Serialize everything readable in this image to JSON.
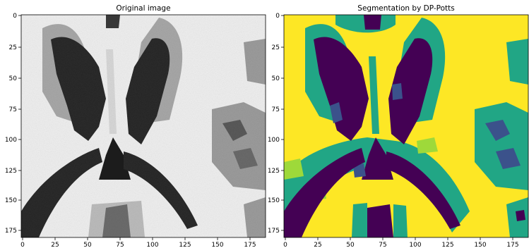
{
  "panels": [
    {
      "title": "Original image",
      "x_ticks": [
        "0",
        "25",
        "50",
        "75",
        "100",
        "125",
        "150",
        "175"
      ],
      "y_ticks": [
        "0",
        "25",
        "50",
        "75",
        "100",
        "125",
        "150",
        "175"
      ],
      "colormap": "grayscale"
    },
    {
      "title": "Segmentation by DP-Potts",
      "x_ticks": [
        "0",
        "25",
        "50",
        "75",
        "100",
        "125",
        "150",
        "175"
      ],
      "y_ticks": [
        "0",
        "25",
        "50",
        "75",
        "100",
        "125",
        "150",
        "175"
      ],
      "colormap": "viridis-4-class",
      "class_colors": [
        "#440154",
        "#3b528b",
        "#21a685",
        "#9ed93a",
        "#fde725"
      ]
    }
  ]
}
